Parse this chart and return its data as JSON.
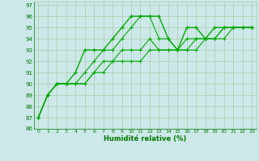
{
  "background_color": "#cce8e8",
  "grid_color": "#aaccaa",
  "line_color": "#00aa00",
  "xlabel": "Humidité relative (%)",
  "xlabel_color": "#007700",
  "tick_color": "#007700",
  "xlim": [
    -0.5,
    23.5
  ],
  "ylim": [
    86,
    97.3
  ],
  "yticks": [
    86,
    87,
    88,
    89,
    90,
    91,
    92,
    93,
    94,
    95,
    96,
    97
  ],
  "xticks": [
    0,
    1,
    2,
    3,
    4,
    5,
    6,
    7,
    8,
    9,
    10,
    11,
    12,
    13,
    14,
    15,
    16,
    17,
    18,
    19,
    20,
    21,
    22,
    23
  ],
  "series": [
    [
      87,
      89,
      90,
      90,
      91,
      93,
      93,
      93,
      94,
      95,
      96,
      96,
      96,
      96,
      94,
      93,
      95,
      95,
      94,
      95,
      95,
      95,
      95,
      95
    ],
    [
      87,
      89,
      90,
      90,
      90,
      91,
      92,
      93,
      93,
      94,
      95,
      96,
      96,
      94,
      94,
      93,
      94,
      94,
      94,
      94,
      95,
      95,
      95,
      95
    ],
    [
      87,
      89,
      90,
      90,
      90,
      90,
      91,
      92,
      92,
      93,
      93,
      93,
      94,
      93,
      93,
      93,
      93,
      94,
      94,
      94,
      95,
      95,
      95,
      95
    ],
    [
      87,
      89,
      90,
      90,
      90,
      90,
      91,
      91,
      92,
      92,
      92,
      92,
      93,
      93,
      93,
      93,
      93,
      93,
      94,
      94,
      94,
      95,
      95,
      95
    ]
  ],
  "linewidths": [
    1.0,
    0.8,
    0.8,
    0.8
  ],
  "markersizes": [
    3.5,
    3.0,
    3.0,
    3.0
  ]
}
